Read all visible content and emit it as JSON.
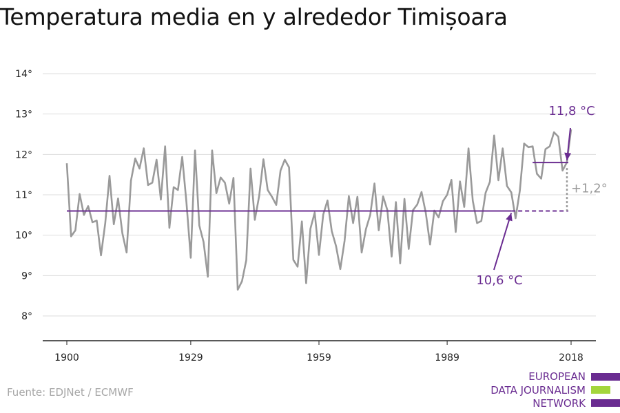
{
  "title": "Temperatura media en y alrededor Timișoara",
  "source": "Fuente: EDJNet / ECMWF",
  "logo": {
    "lines": [
      "EUROPEAN",
      "DATA JOURNALISM",
      "NETWORK"
    ],
    "colors": {
      "purple": "#6a2c91",
      "green": "#a3d63c"
    }
  },
  "colors": {
    "series": "#9a9a9a",
    "baseline": "#6a2c91",
    "recent": "#6a2c91",
    "grid": "#dddddd",
    "axis": "#222222",
    "annotation_gray": "#9a9a9a"
  },
  "chart_data": {
    "type": "line",
    "title": "Temperatura media en y alrededor Timișoara",
    "xlabel": "",
    "ylabel": "",
    "xlim": [
      1900,
      2018
    ],
    "ylim": [
      8,
      14
    ],
    "x_ticks": [
      1900,
      1929,
      1959,
      1989,
      2018
    ],
    "y_ticks": [
      8,
      9,
      10,
      11,
      12,
      13,
      14
    ],
    "y_tick_suffix": "°",
    "grid": "horizontal",
    "series": [
      {
        "x": [
          1900,
          1901,
          1902,
          1903,
          1904,
          1905,
          1906,
          1907,
          1908,
          1909,
          1910,
          1911,
          1912,
          1913,
          1914,
          1915,
          1916,
          1917,
          1918,
          1919,
          1920,
          1921,
          1922,
          1923,
          1924,
          1925,
          1926,
          1927,
          1928,
          1929,
          1930,
          1931,
          1932,
          1933,
          1934,
          1935,
          1936,
          1937,
          1938,
          1939,
          1940,
          1941,
          1942,
          1943,
          1944,
          1945,
          1946,
          1947,
          1948,
          1949,
          1950,
          1951,
          1952,
          1953,
          1954,
          1955,
          1956,
          1957,
          1958,
          1959,
          1960,
          1961,
          1962,
          1963,
          1964,
          1965,
          1966,
          1967,
          1968,
          1969,
          1970,
          1971,
          1972,
          1973,
          1974,
          1975,
          1976,
          1977,
          1978,
          1979,
          1980,
          1981,
          1982,
          1983,
          1984,
          1985,
          1986,
          1987,
          1988,
          1989,
          1990,
          1991,
          1992,
          1993,
          1994,
          1995,
          1996,
          1997,
          1998,
          1999,
          2000,
          2001,
          2002,
          2003,
          2004,
          2005,
          2006,
          2007,
          2008,
          2009,
          2010,
          2011,
          2012,
          2013,
          2014,
          2015,
          2016,
          2017,
          2018
        ],
        "values": [
          11.78,
          9.97,
          10.12,
          11.02,
          10.5,
          10.72,
          10.32,
          10.36,
          9.5,
          10.3,
          11.47,
          10.27,
          10.91,
          10.05,
          9.57,
          11.35,
          11.9,
          11.65,
          12.15,
          11.24,
          11.3,
          11.87,
          10.88,
          12.2,
          10.18,
          11.19,
          11.12,
          11.94,
          10.8,
          9.44,
          12.1,
          10.24,
          9.83,
          8.97,
          12.1,
          11.04,
          11.43,
          11.3,
          10.78,
          11.42,
          8.65,
          8.86,
          9.38,
          11.65,
          10.38,
          10.97,
          11.88,
          11.12,
          10.95,
          10.75,
          11.6,
          11.87,
          11.68,
          9.39,
          9.22,
          10.34,
          8.81,
          10.16,
          10.56,
          9.51,
          10.51,
          10.86,
          10.1,
          9.73,
          9.16,
          9.86,
          10.97,
          10.3,
          10.95,
          9.57,
          10.15,
          10.5,
          11.28,
          10.12,
          10.96,
          10.62,
          9.47,
          10.82,
          9.3,
          10.9,
          9.66,
          10.62,
          10.76,
          11.07,
          10.55,
          9.77,
          10.61,
          10.44,
          10.84,
          11.0,
          11.37,
          10.08,
          11.33,
          10.7,
          12.15,
          10.85,
          10.3,
          10.35,
          11.05,
          11.32,
          12.47,
          11.36,
          12.15,
          11.22,
          11.06,
          10.42,
          11.1,
          12.27,
          12.18,
          12.2,
          11.52,
          11.4,
          12.13,
          12.2,
          12.55,
          12.44,
          11.6,
          11.8,
          12.62
        ]
      }
    ],
    "reference_lines": [
      {
        "value": 10.6,
        "from": 1900,
        "to": 2018,
        "label": "10,6 °C",
        "dashed_from": 2004
      },
      {
        "value": 11.8,
        "from": 2009,
        "to": 2018,
        "label": "11,8 °C"
      }
    ],
    "difference_label": "+1,2°"
  }
}
